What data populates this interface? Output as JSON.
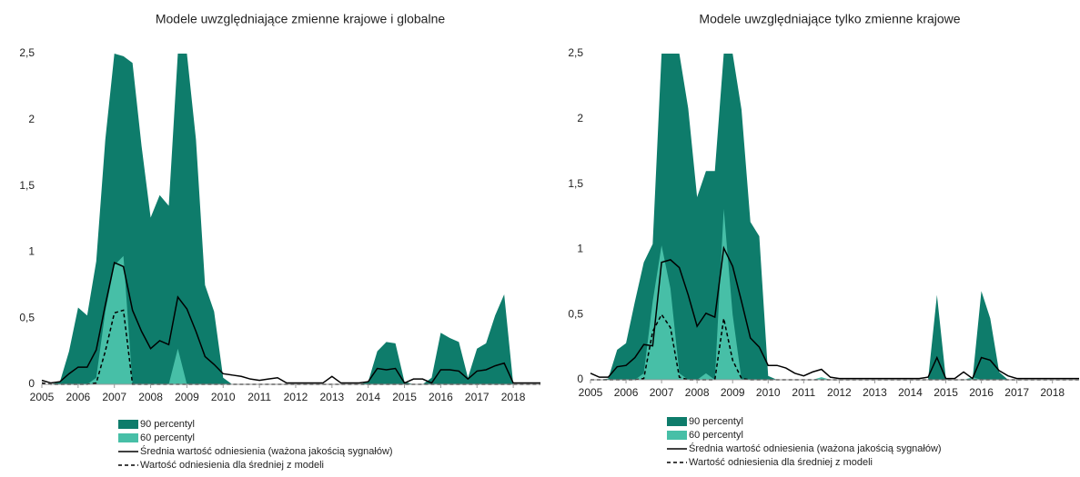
{
  "chart_data": [
    {
      "type": "area",
      "title": "Modele uwzględniające zmienne krajowe i globalne",
      "x": [
        2005,
        2005.25,
        2005.5,
        2005.75,
        2006,
        2006.25,
        2006.5,
        2006.75,
        2007,
        2007.25,
        2007.5,
        2007.75,
        2008,
        2008.25,
        2008.5,
        2008.75,
        2009,
        2009.25,
        2009.5,
        2009.75,
        2010,
        2010.25,
        2010.5,
        2010.75,
        2011,
        2011.25,
        2011.5,
        2011.75,
        2012,
        2012.25,
        2012.5,
        2012.75,
        2013,
        2013.25,
        2013.5,
        2013.75,
        2014,
        2014.25,
        2014.5,
        2014.75,
        2015,
        2015.25,
        2015.5,
        2015.75,
        2016,
        2016.25,
        2016.5,
        2016.75,
        2017,
        2017.25,
        2017.5,
        2017.75,
        2018,
        2018.25,
        2018.5,
        2018.75
      ],
      "xlim": [
        2005,
        2018.75
      ],
      "xticks": [
        2005,
        2006,
        2007,
        2008,
        2009,
        2010,
        2011,
        2012,
        2013,
        2014,
        2015,
        2016,
        2017,
        2018
      ],
      "ylim": [
        0,
        2.5
      ],
      "yticks": [
        0,
        {
          "value": 0.5,
          "label": "0,5"
        },
        1,
        {
          "value": 1.5,
          "label": "1,5"
        },
        2,
        {
          "value": 2.5,
          "label": "2,5"
        }
      ],
      "series": [
        {
          "name": "90 percentyl",
          "kind": "area",
          "color": "#0e7c6b",
          "values": [
            0,
            0,
            0.02,
            0.25,
            0.58,
            0.52,
            0.93,
            1.85,
            2.5,
            2.48,
            2.43,
            1.8,
            1.26,
            1.43,
            1.35,
            2.5,
            2.5,
            1.85,
            0.75,
            0.55,
            0.05,
            0,
            0,
            0,
            0,
            0,
            0,
            0,
            0,
            0,
            0,
            0,
            0,
            0,
            0,
            0,
            0.02,
            0.25,
            0.32,
            0.31,
            0.02,
            0,
            0,
            0.05,
            0.39,
            0.35,
            0.32,
            0.05,
            0.27,
            0.31,
            0.52,
            0.68,
            0,
            0,
            0,
            0
          ]
        },
        {
          "name": "60 percentyl",
          "kind": "area",
          "color": "#47bfa7",
          "values": [
            0,
            0,
            0,
            0,
            0,
            0,
            0.05,
            0.55,
            0.9,
            0.97,
            0,
            0,
            0,
            0,
            0,
            0.27,
            0,
            0,
            0,
            0,
            0,
            0,
            0,
            0,
            0,
            0,
            0,
            0,
            0,
            0,
            0,
            0,
            0,
            0,
            0,
            0,
            0,
            0,
            0,
            0,
            0,
            0,
            0,
            0,
            0,
            0,
            0,
            0,
            0,
            0,
            0,
            0,
            0,
            0,
            0,
            0
          ]
        },
        {
          "name": "Średnia wartość odniesienia (ważona jakością sygnałów)",
          "kind": "line",
          "line_style": "solid",
          "color": "#000000",
          "values": [
            0.03,
            0.01,
            0.02,
            0.08,
            0.13,
            0.13,
            0.26,
            0.6,
            0.92,
            0.89,
            0.56,
            0.4,
            0.27,
            0.33,
            0.3,
            0.66,
            0.57,
            0.4,
            0.21,
            0.15,
            0.08,
            0.07,
            0.06,
            0.04,
            0.03,
            0.04,
            0.05,
            0.01,
            0.01,
            0.01,
            0.01,
            0.01,
            0.06,
            0.01,
            0.01,
            0.01,
            0.02,
            0.12,
            0.11,
            0.12,
            0.01,
            0.04,
            0.04,
            0.01,
            0.11,
            0.11,
            0.1,
            0.04,
            0.1,
            0.11,
            0.14,
            0.16,
            0.01,
            0.01,
            0.01,
            0.01
          ]
        },
        {
          "name": "Wartość odniesienia dla średniej z modeli",
          "kind": "line",
          "line_style": "dashed",
          "color": "#000000",
          "values": [
            0.01,
            0,
            0,
            0,
            0,
            0,
            0.01,
            0.25,
            0.54,
            0.56,
            0,
            0,
            0,
            0,
            0,
            0,
            0,
            0,
            0,
            0,
            0,
            0,
            0,
            0,
            0,
            0,
            0,
            0,
            0,
            0,
            0,
            0,
            0,
            0,
            0,
            0,
            0,
            0,
            0,
            0,
            0,
            0,
            0,
            0,
            0,
            0,
            0,
            0,
            0,
            0,
            0,
            0,
            0,
            0,
            0,
            0
          ]
        }
      ]
    },
    {
      "type": "area",
      "title": "Modele uwzględniające tylko zmienne krajowe",
      "x": [
        2005,
        2005.25,
        2005.5,
        2005.75,
        2006,
        2006.25,
        2006.5,
        2006.75,
        2007,
        2007.25,
        2007.5,
        2007.75,
        2008,
        2008.25,
        2008.5,
        2008.75,
        2009,
        2009.25,
        2009.5,
        2009.75,
        2010,
        2010.25,
        2010.5,
        2010.75,
        2011,
        2011.25,
        2011.5,
        2011.75,
        2012,
        2012.25,
        2012.5,
        2012.75,
        2013,
        2013.25,
        2013.5,
        2013.75,
        2014,
        2014.25,
        2014.5,
        2014.75,
        2015,
        2015.25,
        2015.5,
        2015.75,
        2016,
        2016.25,
        2016.5,
        2016.75,
        2017,
        2017.25,
        2017.5,
        2017.75,
        2018,
        2018.25,
        2018.5,
        2018.75
      ],
      "xlim": [
        2005,
        2018.75
      ],
      "xticks": [
        2005,
        2006,
        2007,
        2008,
        2009,
        2010,
        2011,
        2012,
        2013,
        2014,
        2015,
        2016,
        2017,
        2018
      ],
      "ylim": [
        0,
        2.5
      ],
      "yticks": [
        0,
        {
          "value": 0.5,
          "label": "0,5"
        },
        1,
        {
          "value": 1.5,
          "label": "1,5"
        },
        2,
        {
          "value": 2.5,
          "label": "2,5"
        }
      ],
      "series": [
        {
          "name": "90 percentyl",
          "kind": "area",
          "color": "#0e7c6b",
          "values": [
            0,
            0,
            0.01,
            0.23,
            0.28,
            0.6,
            0.9,
            1.04,
            2.5,
            2.5,
            2.5,
            2.08,
            1.4,
            1.6,
            1.6,
            2.5,
            2.5,
            2.07,
            1.21,
            1.1,
            0.03,
            0,
            0,
            0,
            0,
            0,
            0,
            0,
            0,
            0,
            0,
            0,
            0,
            0,
            0,
            0,
            0,
            0,
            0,
            0.65,
            0.01,
            0,
            0,
            0,
            0.68,
            0.47,
            0.06,
            0,
            0,
            0,
            0,
            0,
            0,
            0,
            0,
            0
          ]
        },
        {
          "name": "60 percentyl",
          "kind": "area",
          "color": "#47bfa7",
          "values": [
            0,
            0,
            0,
            0,
            0,
            0,
            0.05,
            0.6,
            1.03,
            0.7,
            0.05,
            0,
            0,
            0.05,
            0,
            1.31,
            0.5,
            0,
            0,
            0,
            0,
            0,
            0,
            0,
            0,
            0,
            0.02,
            0,
            0,
            0,
            0,
            0,
            0,
            0,
            0,
            0,
            0,
            0,
            0,
            0,
            0,
            0,
            0,
            0.02,
            0,
            0,
            0,
            0,
            0,
            0,
            0,
            0,
            0,
            0,
            0,
            0
          ]
        },
        {
          "name": "Średnia wartość odniesienia (ważona jakością sygnałów)",
          "kind": "line",
          "line_style": "solid",
          "color": "#000000",
          "values": [
            0.05,
            0.02,
            0.02,
            0.1,
            0.11,
            0.17,
            0.27,
            0.26,
            0.9,
            0.92,
            0.86,
            0.65,
            0.41,
            0.51,
            0.48,
            1.01,
            0.87,
            0.6,
            0.32,
            0.25,
            0.11,
            0.11,
            0.09,
            0.05,
            0.03,
            0.06,
            0.08,
            0.02,
            0.01,
            0.01,
            0.01,
            0.01,
            0.01,
            0.01,
            0.01,
            0.01,
            0.01,
            0.01,
            0.02,
            0.17,
            0.01,
            0.01,
            0.06,
            0.01,
            0.17,
            0.15,
            0.07,
            0.03,
            0.01,
            0.01,
            0.01,
            0.01,
            0.01,
            0.01,
            0.01,
            0.01
          ]
        },
        {
          "name": "Wartość odniesienia dla średniej z modeli",
          "kind": "line",
          "line_style": "dashed",
          "color": "#000000",
          "values": [
            0,
            0,
            0,
            0,
            0,
            0,
            0.01,
            0.37,
            0.5,
            0.4,
            0.02,
            0,
            0,
            0,
            0,
            0.47,
            0.15,
            0.01,
            0,
            0,
            0,
            0,
            0,
            0,
            0,
            0,
            0,
            0,
            0,
            0,
            0,
            0,
            0,
            0,
            0,
            0,
            0,
            0,
            0,
            0,
            0,
            0,
            0,
            0,
            0,
            0,
            0,
            0,
            0,
            0,
            0,
            0,
            0,
            0,
            0,
            0
          ]
        }
      ]
    }
  ]
}
